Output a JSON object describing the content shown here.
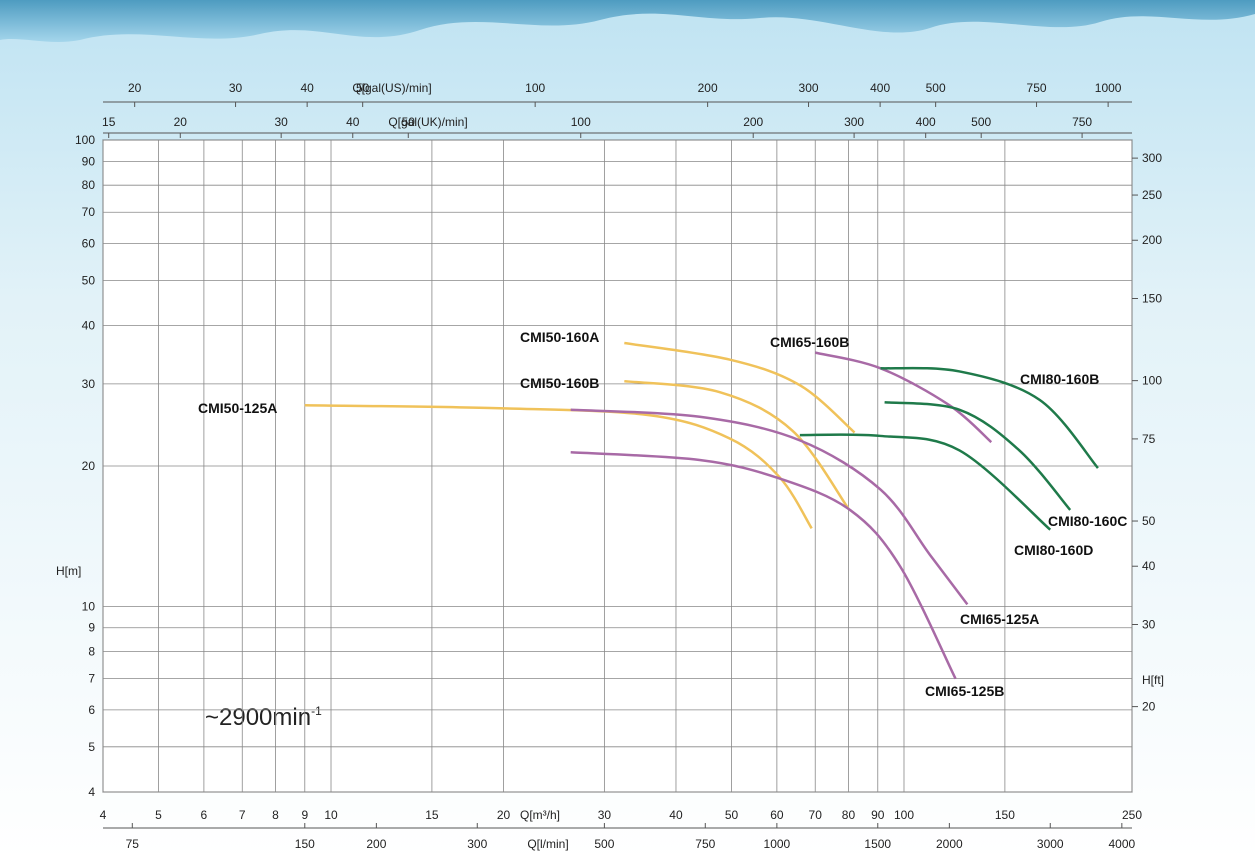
{
  "chart_data": {
    "type": "line",
    "xscale": "log",
    "yscale": "log",
    "grid": true,
    "xlabel": "Q[m³/h]",
    "ylabel": "H[m]",
    "y2label": "H[ft]",
    "annotation": {
      "text": "~2900min",
      "sup": "-1"
    },
    "xlim": [
      4,
      250
    ],
    "xticks": [
      4,
      5,
      6,
      7,
      8,
      9,
      10,
      15,
      20,
      30,
      40,
      50,
      60,
      70,
      80,
      90,
      100,
      150,
      250
    ],
    "ylim": [
      4,
      100
    ],
    "yticks": [
      4,
      5,
      6,
      7,
      8,
      9,
      10,
      20,
      30,
      40,
      50,
      60,
      70,
      80,
      90,
      100
    ],
    "y2lim": [
      13.12,
      328.08
    ],
    "y2ticks": [
      20,
      30,
      40,
      50,
      75,
      100,
      150,
      200,
      250,
      300
    ],
    "secondary_x_axes": [
      {
        "label": "Q[l/min]",
        "xlim": [
          66.67,
          4166.67
        ],
        "xticks": [
          75,
          150,
          200,
          300,
          500,
          750,
          1000,
          1500,
          2000,
          3000,
          4000
        ]
      },
      {
        "label": "Q[gal(US)/min]",
        "xlim": [
          17.61,
          1100.7
        ],
        "xticks": [
          20,
          30,
          40,
          50,
          100,
          200,
          300,
          400,
          500,
          750,
          1000
        ]
      },
      {
        "label": "Q[gal(UK)/min]",
        "xlim": [
          14.66,
          916.6
        ],
        "xticks": [
          15,
          20,
          30,
          40,
          50,
          100,
          200,
          300,
          400,
          500,
          750
        ]
      }
    ],
    "series": [
      {
        "name": "CMI50-125A",
        "color": "#f0c25a",
        "x": [
          9,
          19.7,
          36,
          49.7,
          60.7,
          69
        ],
        "values": [
          27.0,
          26.6,
          25.7,
          22.9,
          18.9,
          14.7
        ]
      },
      {
        "name": "CMI50-160A",
        "color": "#f0c25a",
        "x": [
          32.5,
          49.7,
          65.8,
          82
        ],
        "values": [
          36.7,
          33.8,
          29.8,
          23.6
        ]
      },
      {
        "name": "CMI50-160B",
        "color": "#f0c25a",
        "x": [
          32.5,
          47.7,
          63.9,
          80
        ],
        "values": [
          30.4,
          28.8,
          23.8,
          16.2
        ]
      },
      {
        "name": "CMI65-160B",
        "color": "#a86aa6",
        "x": [
          70,
          91,
          120,
          142
        ],
        "values": [
          35.0,
          32.4,
          27.0,
          22.5
        ]
      },
      {
        "name": "CMI65-125A",
        "color": "#a86aa6",
        "x": [
          26.2,
          44,
          65.8,
          91,
          111,
          129
        ],
        "values": [
          26.4,
          25.5,
          22.7,
          17.8,
          12.9,
          10.1
        ]
      },
      {
        "name": "CMI65-125B",
        "color": "#a86aa6",
        "x": [
          26.2,
          44,
          60.7,
          80.5,
          98.4,
          123
        ],
        "values": [
          21.4,
          20.6,
          18.8,
          16.1,
          12.2,
          7.0
        ]
      },
      {
        "name": "CMI80-160B",
        "color": "#1f7a4a",
        "x": [
          91,
          125,
          172.6,
          218
        ],
        "values": [
          32.4,
          31.9,
          27.7,
          19.8
        ]
      },
      {
        "name": "CMI80-160C",
        "color": "#1f7a4a",
        "x": [
          92.5,
          125,
          159,
          195
        ],
        "values": [
          27.4,
          26.4,
          21.6,
          16.1
        ]
      },
      {
        "name": "CMI80-160D",
        "color": "#1f7a4a",
        "x": [
          65.8,
          91,
          125,
          180
        ],
        "values": [
          23.3,
          23.2,
          21.6,
          14.6
        ]
      }
    ]
  }
}
